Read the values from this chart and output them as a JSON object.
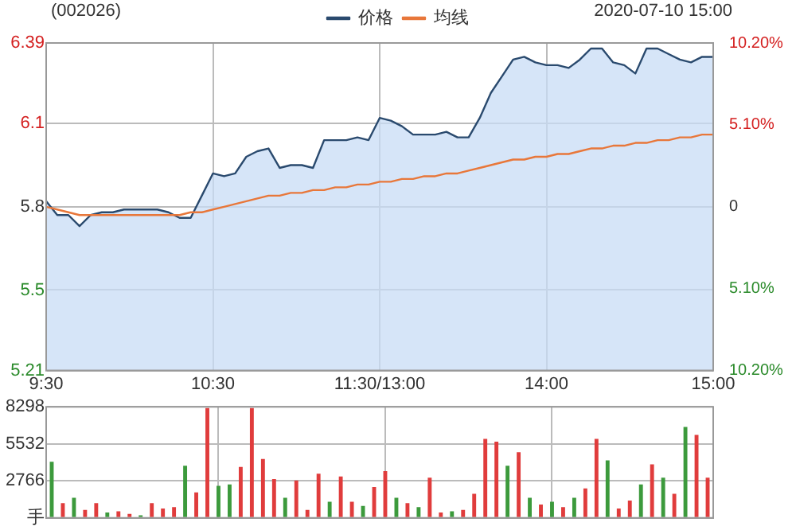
{
  "chart_data": [
    {
      "type": "line",
      "title": "(002026)",
      "annotations": [
        "2020-07-10 15:00"
      ],
      "legend": "top",
      "grid": true,
      "categories": [
        "9:30",
        null,
        null,
        null,
        null,
        null,
        null,
        null,
        null,
        null,
        null,
        null,
        null,
        null,
        null,
        "10:30",
        null,
        null,
        null,
        null,
        null,
        null,
        null,
        null,
        null,
        null,
        null,
        null,
        null,
        null,
        "11:30/13:00",
        null,
        null,
        null,
        null,
        null,
        null,
        null,
        null,
        null,
        null,
        null,
        null,
        null,
        null,
        "14:00",
        null,
        null,
        null,
        null,
        null,
        null,
        null,
        null,
        null,
        null,
        null,
        null,
        null,
        null,
        "15:00"
      ],
      "ylim": [
        5.21,
        6.39
      ],
      "yticks": [
        5.21,
        5.5,
        5.8,
        6.1,
        6.39
      ],
      "y2lim": [
        -10.2,
        10.2
      ],
      "y2ticks": [
        {
          "value": -10.2,
          "label": "10.20%"
        },
        {
          "value": -5.1,
          "label": "5.10%"
        },
        0,
        {
          "value": 5.1,
          "label": "5.10%"
        },
        {
          "value": 10.2,
          "label": "10.20%"
        }
      ],
      "series": [
        {
          "name": "价格",
          "type": "area",
          "color": "#2a4a6e",
          "values": [
            5.82,
            5.77,
            5.77,
            5.73,
            5.77,
            5.78,
            5.78,
            5.79,
            5.79,
            5.79,
            5.79,
            5.78,
            5.76,
            5.76,
            5.84,
            5.92,
            5.91,
            5.92,
            5.98,
            6.0,
            6.01,
            5.94,
            5.95,
            5.95,
            5.94,
            6.04,
            6.04,
            6.04,
            6.05,
            6.04,
            6.12,
            6.11,
            6.09,
            6.06,
            6.06,
            6.06,
            6.07,
            6.05,
            6.05,
            6.12,
            6.21,
            6.27,
            6.33,
            6.34,
            6.32,
            6.31,
            6.31,
            6.3,
            6.33,
            6.37,
            6.37,
            6.32,
            6.31,
            6.28,
            6.37,
            6.37,
            6.35,
            6.33,
            6.32,
            6.34,
            6.34
          ]
        },
        {
          "name": "均线",
          "type": "line",
          "color": "#e8773a",
          "values": [
            5.8,
            5.79,
            5.78,
            5.77,
            5.77,
            5.77,
            5.77,
            5.77,
            5.77,
            5.77,
            5.77,
            5.77,
            5.77,
            5.78,
            5.78,
            5.79,
            5.8,
            5.81,
            5.82,
            5.83,
            5.84,
            5.84,
            5.85,
            5.85,
            5.86,
            5.86,
            5.87,
            5.87,
            5.88,
            5.88,
            5.89,
            5.89,
            5.9,
            5.9,
            5.91,
            5.91,
            5.92,
            5.92,
            5.93,
            5.94,
            5.95,
            5.96,
            5.97,
            5.97,
            5.98,
            5.98,
            5.99,
            5.99,
            6.0,
            6.01,
            6.01,
            6.02,
            6.02,
            6.03,
            6.03,
            6.04,
            6.04,
            6.05,
            6.05,
            6.06,
            6.06
          ]
        }
      ]
    },
    {
      "type": "bar",
      "grid": true,
      "tick_labels": "y",
      "categories": [
        null,
        null,
        null,
        null,
        null,
        null,
        null,
        null,
        null,
        null,
        null,
        null,
        null,
        null,
        null,
        null,
        null,
        null,
        null,
        null,
        null,
        null,
        null,
        null,
        null,
        null,
        null,
        null,
        null,
        null,
        null,
        null,
        null,
        null,
        null,
        null,
        null,
        null,
        null,
        null,
        null,
        null,
        null,
        null,
        null,
        null,
        null,
        null,
        null,
        null,
        null,
        null,
        null,
        null,
        null,
        null,
        null,
        null,
        null,
        null
      ],
      "ylim": [
        0,
        8298
      ],
      "yticks": [
        {
          "value": 0,
          "label": "手"
        },
        2766,
        5532,
        8298
      ],
      "values": [
        4200,
        1100,
        1500,
        600,
        1100,
        400,
        500,
        300,
        200,
        1100,
        700,
        800,
        3900,
        1900,
        8200,
        2400,
        2500,
        3800,
        8200,
        4400,
        2900,
        1500,
        2800,
        600,
        3300,
        1200,
        3100,
        1200,
        900,
        2300,
        3500,
        1500,
        1100,
        800,
        3000,
        400,
        500,
        600,
        1800,
        5900,
        5700,
        3900,
        4900,
        1500,
        1000,
        1200,
        800,
        1500,
        2200,
        5900,
        4300,
        700,
        1300,
        2500,
        4000,
        3000,
        1800,
        6800,
        6200,
        3000
      ],
      "colors": [
        "#3c9a3c",
        "#e03c3c",
        "#3c9a3c",
        "#e03c3c",
        "#e03c3c",
        "#3c9a3c",
        "#e03c3c",
        "#e03c3c",
        "#3c9a3c",
        "#e03c3c",
        "#e03c3c",
        "#e03c3c",
        "#3c9a3c",
        "#e03c3c",
        "#e03c3c",
        "#3c9a3c",
        "#3c9a3c",
        "#e03c3c",
        "#e03c3c",
        "#e03c3c",
        "#e03c3c",
        "#3c9a3c",
        "#e03c3c",
        "#e03c3c",
        "#e03c3c",
        "#3c9a3c",
        "#e03c3c",
        "#e03c3c",
        "#3c9a3c",
        "#e03c3c",
        "#e03c3c",
        "#3c9a3c",
        "#e03c3c",
        "#3c9a3c",
        "#e03c3c",
        "#e03c3c",
        "#3c9a3c",
        "#e03c3c",
        "#e03c3c",
        "#e03c3c",
        "#e03c3c",
        "#3c9a3c",
        "#e03c3c",
        "#3c9a3c",
        "#e03c3c",
        "#3c9a3c",
        "#e03c3c",
        "#3c9a3c",
        "#e03c3c",
        "#e03c3c",
        "#3c9a3c",
        "#e03c3c",
        "#e03c3c",
        "#3c9a3c",
        "#e03c3c",
        "#3c9a3c",
        "#e03c3c",
        "#3c9a3c",
        "#e03c3c",
        "#e03c3c"
      ]
    }
  ]
}
